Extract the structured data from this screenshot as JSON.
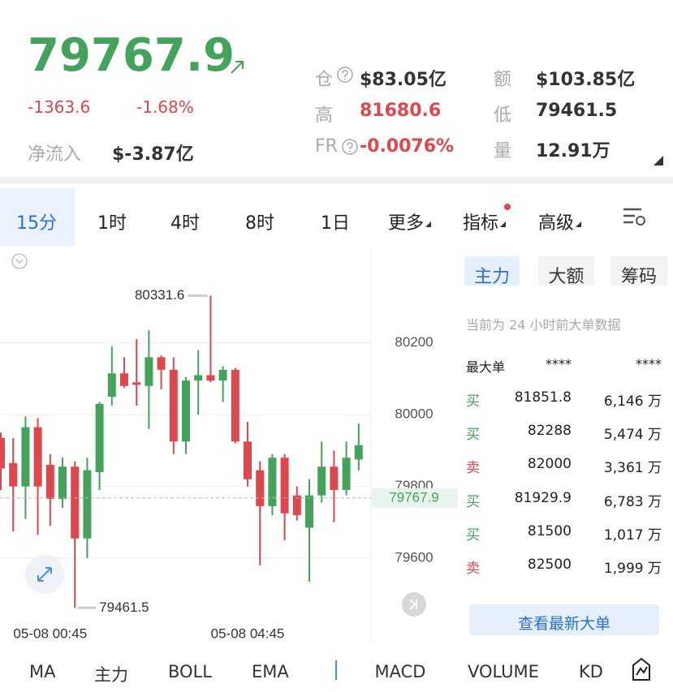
{
  "header": {
    "price": "79767.9",
    "change": "-1363.6",
    "change_pct": "-1.68%",
    "net_inflow_label": "净流入",
    "net_inflow": "$-3.87亿",
    "stats": [
      {
        "label": "仓",
        "value": "$83.05亿"
      },
      {
        "label": "额",
        "value": "$103.85亿"
      },
      {
        "label": "高",
        "value": "81680.6"
      },
      {
        "label": "低",
        "value": "79461.5"
      },
      {
        "label": "FR",
        "value": "-0.0076%"
      },
      {
        "label": "量",
        "value": "12.91万"
      }
    ]
  },
  "tabs": [
    "15分",
    "1时",
    "4时",
    "8时",
    "1日",
    "更多",
    "指标",
    "高级"
  ],
  "chart_data": {
    "type": "candlestick",
    "categories": [
      null,
      null,
      null,
      null,
      "05-08 00:45",
      null,
      null,
      null,
      null,
      null,
      null,
      null,
      null,
      null,
      null,
      null,
      null,
      null,
      null,
      null,
      "05-08 04:45",
      null,
      null,
      null,
      null,
      null,
      null,
      null,
      null,
      null
    ],
    "open": [
      79935,
      79865,
      79800,
      79965,
      79860,
      79765,
      79855,
      79655,
      79840,
      80050,
      80115,
      80090,
      80080,
      80160,
      80125,
      79925,
      80095,
      80110,
      80095,
      80125,
      79925,
      79845,
      79745,
      79880,
      79775,
      79685,
      79775,
      79855,
      79790,
      79875
    ],
    "high": [
      79950,
      79935,
      79995,
      79990,
      79890,
      79880,
      79870,
      79880,
      80035,
      80190,
      80160,
      80210,
      80235,
      80165,
      80160,
      80105,
      80180,
      80331.6,
      80135,
      80130,
      79980,
      79870,
      79890,
      79890,
      79800,
      79820,
      79925,
      79900,
      79925,
      79975
    ],
    "low": [
      79790,
      79675,
      79710,
      79665,
      79690,
      79740,
      79461.5,
      79600,
      79790,
      80025,
      80075,
      80025,
      79960,
      80070,
      79890,
      79890,
      80000,
      80090,
      80035,
      79920,
      79800,
      79580,
      79720,
      79650,
      79705,
      79535,
      79755,
      79700,
      79775,
      79845
    ],
    "close": [
      79850,
      79800,
      79965,
      79800,
      79765,
      79855,
      79655,
      79845,
      80030,
      80115,
      80080,
      80083,
      80160,
      80125,
      79925,
      80095,
      80110,
      80095,
      80125,
      79925,
      79820,
      79745,
      79880,
      79725,
      79720,
      79775,
      79855,
      79790,
      79880,
      79915
    ],
    "up_color": "#43a35b",
    "down_color": "#e0474c",
    "ylim": [
      79426,
      80466
    ],
    "yticks": [
      79600,
      79800,
      80000,
      80200
    ],
    "grid": true,
    "max_label": 80331.6,
    "min_label": 79461.5,
    "last_price": 79767.9
  },
  "panel": {
    "tabs": [
      "主力",
      "大额",
      "筹码"
    ],
    "note": "当前为 24 小时前大单数据",
    "head": [
      "最大单",
      "****",
      "****"
    ],
    "rows": [
      [
        "买",
        "81851.8",
        "6,146 万"
      ],
      [
        "买",
        "82288",
        "5,474 万"
      ],
      [
        "卖",
        "82000",
        "3,361 万"
      ],
      [
        "买",
        "81929.9",
        "6,783 万"
      ],
      [
        "买",
        "81500",
        "1,017 万"
      ],
      [
        "卖",
        "82500",
        "1,999 万"
      ]
    ],
    "button": "查看最新大单"
  },
  "indicators": [
    "MA",
    "主力",
    "BOLL",
    "EMA",
    "MACD",
    "VOLUME",
    "KD"
  ]
}
